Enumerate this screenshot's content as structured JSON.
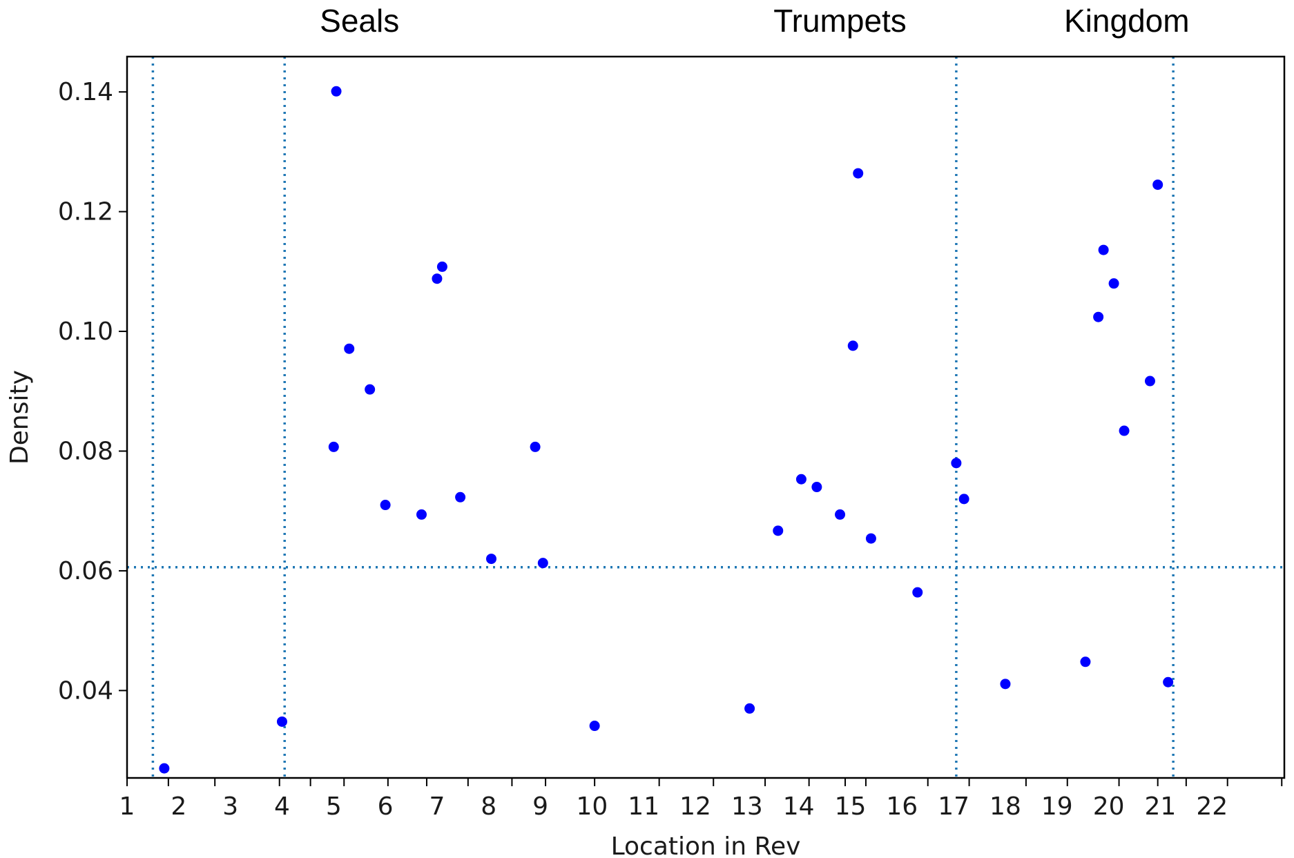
{
  "chart_data": {
    "type": "scatter",
    "title": "",
    "xlabel": "Location in Rev",
    "ylabel": "Density",
    "xlim": [
      1,
      23.4
    ],
    "ylim": [
      0.0254,
      0.1459
    ],
    "x_tick_labels": [
      {
        "label": "1",
        "loc": 1.0
      },
      {
        "label": "2",
        "loc": 2.0
      },
      {
        "label": "3",
        "loc": 3.0
      },
      {
        "label": "4",
        "loc": 4.0
      },
      {
        "label": "5",
        "loc": 5.0
      },
      {
        "label": "6",
        "loc": 6.0
      },
      {
        "label": "7",
        "loc": 7.0
      },
      {
        "label": "8",
        "loc": 8.0
      },
      {
        "label": "9",
        "loc": 9.0
      },
      {
        "label": "10",
        "loc": 10.0
      },
      {
        "label": "11",
        "loc": 11.0
      },
      {
        "label": "12",
        "loc": 12.0
      },
      {
        "label": "13",
        "loc": 13.0
      },
      {
        "label": "14",
        "loc": 14.0
      },
      {
        "label": "15",
        "loc": 15.0
      },
      {
        "label": "16",
        "loc": 16.0
      },
      {
        "label": "17",
        "loc": 17.0
      },
      {
        "label": "18",
        "loc": 18.0
      },
      {
        "label": "19",
        "loc": 19.0
      },
      {
        "label": "20",
        "loc": 20.0
      },
      {
        "label": "21",
        "loc": 21.0
      },
      {
        "label": "22",
        "loc": 22.0
      }
    ],
    "x_tick_positions": [
      1.0,
      1.8,
      2.7,
      3.95,
      4.55,
      5.2,
      6.05,
      6.8,
      7.6,
      8.45,
      9.1,
      10.05,
      11.3,
      12.35,
      13.35,
      14.2,
      14.9,
      15.3,
      16.5,
      17.3,
      18.4,
      19.2,
      20.2,
      20.95,
      21.5,
      22.3,
      23.35
    ],
    "y_ticks": [
      {
        "label": "0.04",
        "value": 0.04
      },
      {
        "label": "0.06",
        "value": 0.06
      },
      {
        "label": "0.08",
        "value": 0.08
      },
      {
        "label": "0.10",
        "value": 0.1
      },
      {
        "label": "0.12",
        "value": 0.12
      },
      {
        "label": "0.14",
        "value": 0.14
      }
    ],
    "series": [
      {
        "color": "#0000ff",
        "points": [
          {
            "x": 1.72,
            "y": 0.027
          },
          {
            "x": 4.0,
            "y": 0.0348
          },
          {
            "x": 5.0,
            "y": 0.0807
          },
          {
            "x": 5.05,
            "y": 0.1401
          },
          {
            "x": 5.3,
            "y": 0.0971
          },
          {
            "x": 5.7,
            "y": 0.0903
          },
          {
            "x": 6.0,
            "y": 0.071
          },
          {
            "x": 6.7,
            "y": 0.0694
          },
          {
            "x": 7.0,
            "y": 0.1088
          },
          {
            "x": 7.1,
            "y": 0.1108
          },
          {
            "x": 7.45,
            "y": 0.0723
          },
          {
            "x": 8.05,
            "y": 0.062
          },
          {
            "x": 8.9,
            "y": 0.0807
          },
          {
            "x": 9.05,
            "y": 0.0613
          },
          {
            "x": 10.05,
            "y": 0.0341
          },
          {
            "x": 13.05,
            "y": 0.037
          },
          {
            "x": 13.6,
            "y": 0.0667
          },
          {
            "x": 14.05,
            "y": 0.0753
          },
          {
            "x": 14.35,
            "y": 0.074
          },
          {
            "x": 14.8,
            "y": 0.0694
          },
          {
            "x": 15.05,
            "y": 0.0976
          },
          {
            "x": 15.15,
            "y": 0.1264
          },
          {
            "x": 15.4,
            "y": 0.0654
          },
          {
            "x": 16.3,
            "y": 0.0564
          },
          {
            "x": 17.05,
            "y": 0.078
          },
          {
            "x": 17.2,
            "y": 0.072
          },
          {
            "x": 18.0,
            "y": 0.0411
          },
          {
            "x": 19.55,
            "y": 0.0448
          },
          {
            "x": 19.8,
            "y": 0.1024
          },
          {
            "x": 19.9,
            "y": 0.1136
          },
          {
            "x": 20.1,
            "y": 0.108
          },
          {
            "x": 20.3,
            "y": 0.0834
          },
          {
            "x": 20.8,
            "y": 0.0917
          },
          {
            "x": 20.95,
            "y": 0.1245
          },
          {
            "x": 21.15,
            "y": 0.0414
          }
        ]
      }
    ],
    "reference_lines": {
      "vertical_x": [
        1.5,
        4.05,
        17.05,
        21.25
      ],
      "horizontal_y": [
        0.0606
      ],
      "style": "dotted",
      "color": "#1f77b4"
    },
    "annotations": [
      {
        "text": "Seals",
        "x": 5.5
      },
      {
        "text": "Trumpets",
        "x": 14.8
      },
      {
        "text": "Kingdom",
        "x": 20.35
      }
    ],
    "grid": false,
    "legend": "none"
  }
}
